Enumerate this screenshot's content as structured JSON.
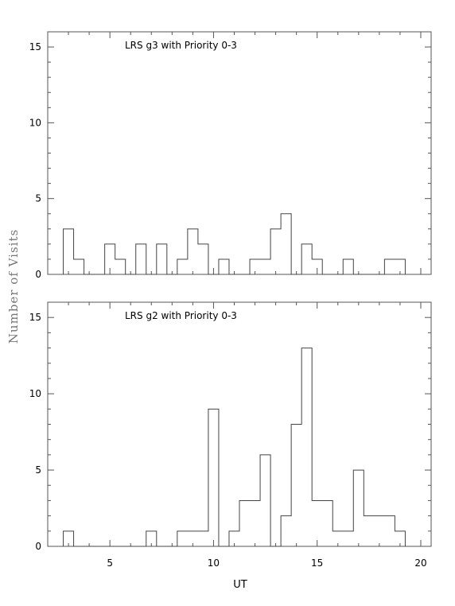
{
  "chart_data": [
    {
      "type": "histogram",
      "title": "LRS g3 with Priority 0-3",
      "xlabel": "UT",
      "ylabel": "Number of Visits",
      "xlim": [
        2,
        20.5
      ],
      "ylim": [
        0,
        16
      ],
      "bin_width": 0.5,
      "x_ticks": [
        5,
        10,
        15,
        20
      ],
      "y_ticks": [
        0,
        5,
        10,
        15
      ],
      "bins_start": [
        2.75,
        3.25,
        3.75,
        4.25,
        4.75,
        5.25,
        5.75,
        6.25,
        6.75,
        7.25,
        7.75,
        8.25,
        8.75,
        9.25,
        9.75,
        10.25,
        10.75,
        11.25,
        11.75,
        12.25,
        12.75,
        13.25,
        13.75,
        14.25,
        14.75,
        15.25,
        15.75,
        16.25,
        16.75,
        17.25,
        17.75,
        18.25,
        18.75
      ],
      "counts": [
        3,
        1,
        0,
        0,
        2,
        1,
        0,
        2,
        0,
        2,
        0,
        1,
        3,
        2,
        0,
        1,
        0,
        0,
        1,
        1,
        3,
        4,
        0,
        2,
        1,
        0,
        0,
        1,
        0,
        0,
        0,
        1,
        1
      ]
    },
    {
      "type": "histogram",
      "title": "LRS g2 with Priority 0-3",
      "xlabel": "UT",
      "ylabel": "Number of Visits",
      "xlim": [
        2,
        20.5
      ],
      "ylim": [
        0,
        16
      ],
      "bin_width": 0.5,
      "x_ticks": [
        5,
        10,
        15,
        20
      ],
      "y_ticks": [
        0,
        5,
        10,
        15
      ],
      "bins_start": [
        2.75,
        3.25,
        3.75,
        4.25,
        4.75,
        5.25,
        5.75,
        6.25,
        6.75,
        7.25,
        7.75,
        8.25,
        8.75,
        9.25,
        9.75,
        10.25,
        10.75,
        11.25,
        11.75,
        12.25,
        12.75,
        13.25,
        13.75,
        14.25,
        14.75,
        15.25,
        15.75,
        16.25,
        16.75,
        17.25,
        17.75,
        18.25,
        18.75
      ],
      "counts": [
        1,
        0,
        0,
        0,
        0,
        0,
        0,
        0,
        1,
        0,
        0,
        1,
        1,
        1,
        9,
        0,
        1,
        3,
        3,
        6,
        0,
        2,
        8,
        13,
        3,
        3,
        1,
        1,
        5,
        2,
        2,
        2,
        1
      ]
    }
  ]
}
